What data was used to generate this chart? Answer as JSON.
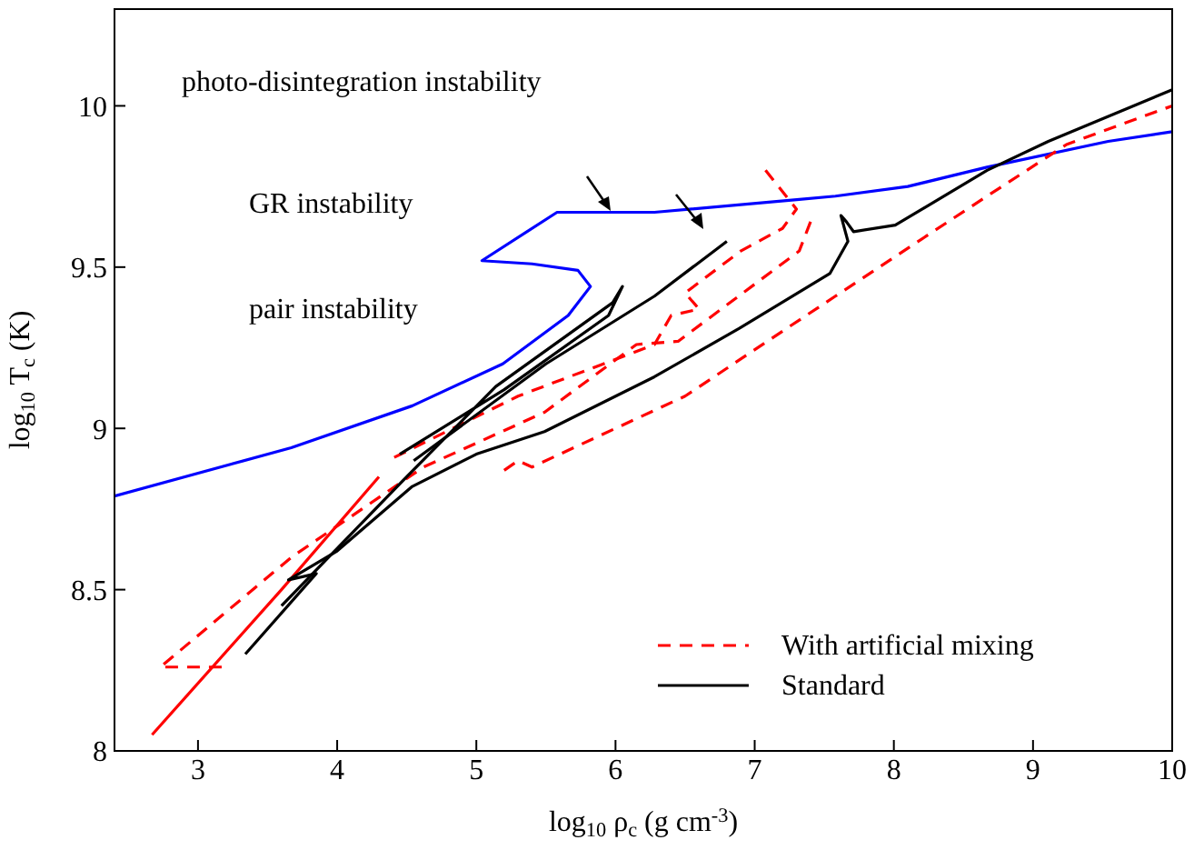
{
  "chart_data": {
    "type": "line",
    "xlabel": "log$_{10}$ ρ$_{c}$ (g cm$^{-3}$)",
    "ylabel": "log$_{10}$ T$_{c}$ (K)",
    "xlim": [
      2.4,
      10
    ],
    "ylim": [
      8,
      10.3
    ],
    "xticks": [
      3,
      4,
      5,
      6,
      7,
      8,
      9,
      10
    ],
    "yticks": [
      8,
      8.5,
      9,
      9.5,
      10
    ],
    "grid": false,
    "legend": "bottom right",
    "marker": "none",
    "annotations": [
      "photo-disintegration instability",
      "GR instability",
      "pair instability"
    ],
    "series": [
      {
        "color": "#0000ff",
        "line_style": "solid",
        "x": [
          2.4,
          3.67,
          4.54,
          5.19,
          5.66,
          5.82,
          5.73,
          5.4,
          5.04,
          5.58,
          6.28,
          7.32,
          7.58,
          8.1,
          8.67,
          9.54,
          10
        ],
        "values": [
          8.79,
          8.94,
          9.07,
          9.2,
          9.35,
          9.44,
          9.49,
          9.51,
          9.52,
          9.67,
          9.67,
          9.71,
          9.72,
          9.75,
          9.81,
          9.89,
          9.92
        ]
      },
      {
        "name": "With artificial mixing",
        "color": "#ff0000",
        "line_style": "dashed",
        "x": [
          3.17,
          2.73,
          3.67,
          4.62,
          5.49,
          6.15,
          6.45,
          7.32,
          7.41
        ],
        "values": [
          8.26,
          8.26,
          8.6,
          8.88,
          9.05,
          9.26,
          9.27,
          9.55,
          9.65
        ]
      },
      {
        "color": "#ff0000",
        "line_style": "dashed",
        "x": [
          5.2,
          5.3,
          5.4,
          6.5,
          7.23,
          7.58,
          8.07,
          8.67,
          9.24,
          10
        ],
        "values": [
          8.87,
          8.9,
          8.88,
          9.1,
          9.31,
          9.41,
          9.55,
          9.72,
          9.88,
          10.0
        ]
      },
      {
        "color": "#ff0000",
        "line_style": "dashed",
        "x": [
          4.41,
          5.3,
          6.28,
          6.4,
          6.6,
          6.5,
          6.9,
          7.2,
          7.3,
          7.06
        ],
        "values": [
          8.91,
          9.1,
          9.26,
          9.35,
          9.37,
          9.42,
          9.55,
          9.62,
          9.68,
          9.81
        ]
      },
      {
        "color": "#ff0000",
        "line_style": "solid",
        "x": [
          2.67,
          3.6,
          4.3
        ],
        "values": [
          8.05,
          8.5,
          8.85
        ]
      },
      {
        "name": "Standard",
        "color": "#000000",
        "line_style": "solid",
        "x": [
          3.34,
          3.85,
          3.65,
          4.0,
          4.54,
          5.0,
          5.49,
          6.28,
          6.89,
          7.54,
          7.67,
          7.62,
          7.66,
          7.71,
          8.01,
          8.67,
          9.11,
          10
        ],
        "values": [
          8.3,
          8.55,
          8.53,
          8.62,
          8.82,
          8.92,
          8.99,
          9.16,
          9.31,
          9.48,
          9.58,
          9.66,
          9.64,
          9.61,
          9.63,
          9.8,
          9.89,
          10.05
        ]
      },
      {
        "color": "#000000",
        "line_style": "solid",
        "x": [
          3.6,
          4.5,
          5.14,
          5.98,
          6.05,
          5.95,
          5.2,
          4.45
        ],
        "values": [
          8.45,
          8.85,
          9.13,
          9.39,
          9.44,
          9.35,
          9.12,
          8.92
        ]
      },
      {
        "color": "#000000",
        "line_style": "solid",
        "x": [
          4.55,
          5.5,
          6.28,
          6.8
        ],
        "values": [
          8.9,
          9.2,
          9.41,
          9.58
        ]
      }
    ]
  }
}
